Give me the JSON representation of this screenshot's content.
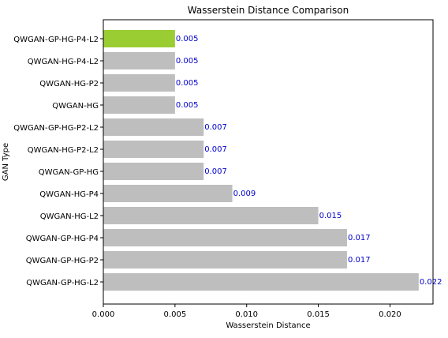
{
  "chart_data": {
    "type": "bar",
    "orientation": "horizontal",
    "title": "Wasserstein Distance Comparison",
    "xlabel": "Wasserstein Distance",
    "ylabel": "GAN Type",
    "categories": [
      "QWGAN-GP-HG-P4-L2",
      "QWGAN-HG-P4-L2",
      "QWGAN-HG-P2",
      "QWGAN-HG",
      "QWGAN-GP-HG-P2-L2",
      "QWGAN-HG-P2-L2",
      "QWGAN-GP-HG",
      "QWGAN-HG-P4",
      "QWGAN-HG-L2",
      "QWGAN-GP-HG-P4",
      "QWGAN-GP-HG-P2",
      "QWGAN-GP-HG-L2"
    ],
    "values": [
      0.005,
      0.005,
      0.005,
      0.005,
      0.007,
      0.007,
      0.007,
      0.009,
      0.015,
      0.017,
      0.017,
      0.022
    ],
    "value_labels": [
      "0.005",
      "0.005",
      "0.005",
      "0.005",
      "0.007",
      "0.007",
      "0.007",
      "0.009",
      "0.015",
      "0.017",
      "0.017",
      "0.022"
    ],
    "xlim": [
      0,
      0.023
    ],
    "xticks": [
      0.0,
      0.005,
      0.01,
      0.015,
      0.02
    ],
    "xtick_labels": [
      "0.000",
      "0.005",
      "0.010",
      "0.015",
      "0.020"
    ],
    "highlight_index": 0,
    "colors": {
      "bar": "#bebebe",
      "highlight": "#9acd32",
      "label": "#0000cc",
      "axis": "#000000"
    },
    "grid": false,
    "legend": "none"
  }
}
